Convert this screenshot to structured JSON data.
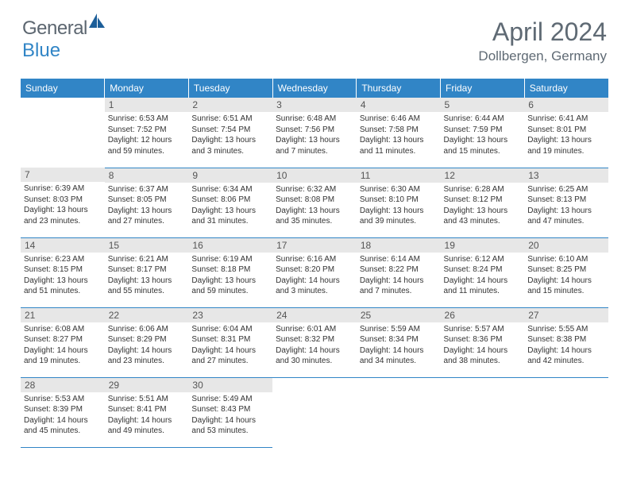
{
  "logo": {
    "text1": "General",
    "text2": "Blue",
    "icon_color": "#1c5e99"
  },
  "title": "April 2024",
  "location": "Dollbergen, Germany",
  "header_bg": "#3185c6",
  "daynum_bg": "#e7e7e7",
  "border_color": "#3185c6",
  "day_headers": [
    "Sunday",
    "Monday",
    "Tuesday",
    "Wednesday",
    "Thursday",
    "Friday",
    "Saturday"
  ],
  "weeks": [
    [
      null,
      {
        "n": "1",
        "sr": "6:53 AM",
        "ss": "7:52 PM",
        "dl": "12 hours and 59 minutes."
      },
      {
        "n": "2",
        "sr": "6:51 AM",
        "ss": "7:54 PM",
        "dl": "13 hours and 3 minutes."
      },
      {
        "n": "3",
        "sr": "6:48 AM",
        "ss": "7:56 PM",
        "dl": "13 hours and 7 minutes."
      },
      {
        "n": "4",
        "sr": "6:46 AM",
        "ss": "7:58 PM",
        "dl": "13 hours and 11 minutes."
      },
      {
        "n": "5",
        "sr": "6:44 AM",
        "ss": "7:59 PM",
        "dl": "13 hours and 15 minutes."
      },
      {
        "n": "6",
        "sr": "6:41 AM",
        "ss": "8:01 PM",
        "dl": "13 hours and 19 minutes."
      }
    ],
    [
      {
        "n": "7",
        "sr": "6:39 AM",
        "ss": "8:03 PM",
        "dl": "13 hours and 23 minutes."
      },
      {
        "n": "8",
        "sr": "6:37 AM",
        "ss": "8:05 PM",
        "dl": "13 hours and 27 minutes."
      },
      {
        "n": "9",
        "sr": "6:34 AM",
        "ss": "8:06 PM",
        "dl": "13 hours and 31 minutes."
      },
      {
        "n": "10",
        "sr": "6:32 AM",
        "ss": "8:08 PM",
        "dl": "13 hours and 35 minutes."
      },
      {
        "n": "11",
        "sr": "6:30 AM",
        "ss": "8:10 PM",
        "dl": "13 hours and 39 minutes."
      },
      {
        "n": "12",
        "sr": "6:28 AM",
        "ss": "8:12 PM",
        "dl": "13 hours and 43 minutes."
      },
      {
        "n": "13",
        "sr": "6:25 AM",
        "ss": "8:13 PM",
        "dl": "13 hours and 47 minutes."
      }
    ],
    [
      {
        "n": "14",
        "sr": "6:23 AM",
        "ss": "8:15 PM",
        "dl": "13 hours and 51 minutes."
      },
      {
        "n": "15",
        "sr": "6:21 AM",
        "ss": "8:17 PM",
        "dl": "13 hours and 55 minutes."
      },
      {
        "n": "16",
        "sr": "6:19 AM",
        "ss": "8:18 PM",
        "dl": "13 hours and 59 minutes."
      },
      {
        "n": "17",
        "sr": "6:16 AM",
        "ss": "8:20 PM",
        "dl": "14 hours and 3 minutes."
      },
      {
        "n": "18",
        "sr": "6:14 AM",
        "ss": "8:22 PM",
        "dl": "14 hours and 7 minutes."
      },
      {
        "n": "19",
        "sr": "6:12 AM",
        "ss": "8:24 PM",
        "dl": "14 hours and 11 minutes."
      },
      {
        "n": "20",
        "sr": "6:10 AM",
        "ss": "8:25 PM",
        "dl": "14 hours and 15 minutes."
      }
    ],
    [
      {
        "n": "21",
        "sr": "6:08 AM",
        "ss": "8:27 PM",
        "dl": "14 hours and 19 minutes."
      },
      {
        "n": "22",
        "sr": "6:06 AM",
        "ss": "8:29 PM",
        "dl": "14 hours and 23 minutes."
      },
      {
        "n": "23",
        "sr": "6:04 AM",
        "ss": "8:31 PM",
        "dl": "14 hours and 27 minutes."
      },
      {
        "n": "24",
        "sr": "6:01 AM",
        "ss": "8:32 PM",
        "dl": "14 hours and 30 minutes."
      },
      {
        "n": "25",
        "sr": "5:59 AM",
        "ss": "8:34 PM",
        "dl": "14 hours and 34 minutes."
      },
      {
        "n": "26",
        "sr": "5:57 AM",
        "ss": "8:36 PM",
        "dl": "14 hours and 38 minutes."
      },
      {
        "n": "27",
        "sr": "5:55 AM",
        "ss": "8:38 PM",
        "dl": "14 hours and 42 minutes."
      }
    ],
    [
      {
        "n": "28",
        "sr": "5:53 AM",
        "ss": "8:39 PM",
        "dl": "14 hours and 45 minutes."
      },
      {
        "n": "29",
        "sr": "5:51 AM",
        "ss": "8:41 PM",
        "dl": "14 hours and 49 minutes."
      },
      {
        "n": "30",
        "sr": "5:49 AM",
        "ss": "8:43 PM",
        "dl": "14 hours and 53 minutes."
      },
      null,
      null,
      null,
      null
    ]
  ],
  "labels": {
    "sunrise": "Sunrise:",
    "sunset": "Sunset:",
    "daylight": "Daylight:"
  }
}
